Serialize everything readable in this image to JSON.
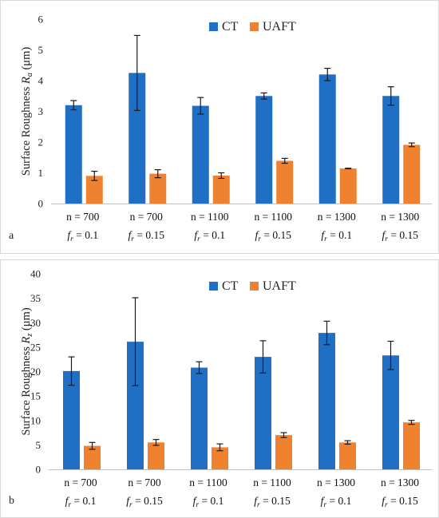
{
  "colors": {
    "ct": "#1F6FC5",
    "uaft": "#F0822F",
    "err": "#1a1a1a",
    "grid": "#d9d9d9",
    "axis": "#bfbfbf"
  },
  "chart_data": [
    {
      "panel_label": "a",
      "type": "bar",
      "ylabel": "Surface Roughness",
      "ylabel_symbol": "R",
      "ylabel_sub": "a",
      "ylabel_unit": "(μm)",
      "ylim": [
        0,
        6
      ],
      "yticks": [
        0,
        1,
        2,
        3,
        4,
        5,
        6
      ],
      "grid": false,
      "legend_placement": "top-right",
      "categories": [
        {
          "line1": "n = 700",
          "param": "f",
          "param_sub": "r",
          "value": "= 0.1"
        },
        {
          "line1": "n = 700",
          "param": "f",
          "param_sub": "r",
          "value": "= 0.15"
        },
        {
          "line1": "n = 1100",
          "param": "f",
          "param_sub": "r",
          "value": "= 0.1"
        },
        {
          "line1": "n = 1100",
          "param": "f",
          "param_sub": "r",
          "value": "= 0.15"
        },
        {
          "line1": "n = 1300",
          "param": "f",
          "param_sub": "r",
          "value": "= 0.1"
        },
        {
          "line1": "n = 1300",
          "param": "f",
          "param_sub": "r",
          "value": "= 0.15"
        }
      ],
      "series": [
        {
          "name": "CT",
          "color_key": "ct",
          "values": [
            3.2,
            4.25,
            3.18,
            3.5,
            4.2,
            3.5
          ],
          "errors": [
            0.15,
            1.22,
            0.27,
            0.1,
            0.2,
            0.3
          ]
        },
        {
          "name": "UAFT",
          "color_key": "uaft",
          "values": [
            0.9,
            0.97,
            0.91,
            1.39,
            1.14,
            1.91
          ],
          "errors": [
            0.15,
            0.13,
            0.09,
            0.08,
            0.01,
            0.06
          ]
        }
      ]
    },
    {
      "panel_label": "b",
      "type": "bar",
      "ylabel": "Surface Roughness",
      "ylabel_symbol": "R",
      "ylabel_sub": "z",
      "ylabel_unit": "(μm)",
      "ylim": [
        0,
        40
      ],
      "yticks": [
        0,
        5,
        10,
        15,
        20,
        25,
        30,
        35,
        40
      ],
      "grid": false,
      "legend_placement": "top-right",
      "categories": [
        {
          "line1": "n = 700",
          "param": "f",
          "param_sub": "r",
          "value": "= 0.1"
        },
        {
          "line1": "n = 700",
          "param": "f",
          "param_sub": "r",
          "value": "= 0.15"
        },
        {
          "line1": "n = 1100",
          "param": "f",
          "param_sub": "r",
          "value": "= 0.1"
        },
        {
          "line1": "n = 1100",
          "param": "f",
          "param_sub": "r",
          "value": "= 0.15"
        },
        {
          "line1": "n = 1300",
          "param": "f",
          "param_sub": "r",
          "value": "= 0.1"
        },
        {
          "line1": "n = 1300",
          "param": "f",
          "param_sub": "r",
          "value": "= 0.15"
        }
      ],
      "series": [
        {
          "name": "CT",
          "color_key": "ct",
          "values": [
            20.1,
            26.1,
            20.8,
            23.0,
            27.9,
            23.3
          ],
          "errors": [
            2.9,
            9.0,
            1.2,
            3.3,
            2.4,
            2.9
          ]
        },
        {
          "name": "UAFT",
          "color_key": "uaft",
          "values": [
            4.8,
            5.5,
            4.5,
            7.0,
            5.5,
            9.6
          ],
          "errors": [
            0.7,
            0.6,
            0.7,
            0.5,
            0.35,
            0.4
          ]
        }
      ]
    }
  ]
}
